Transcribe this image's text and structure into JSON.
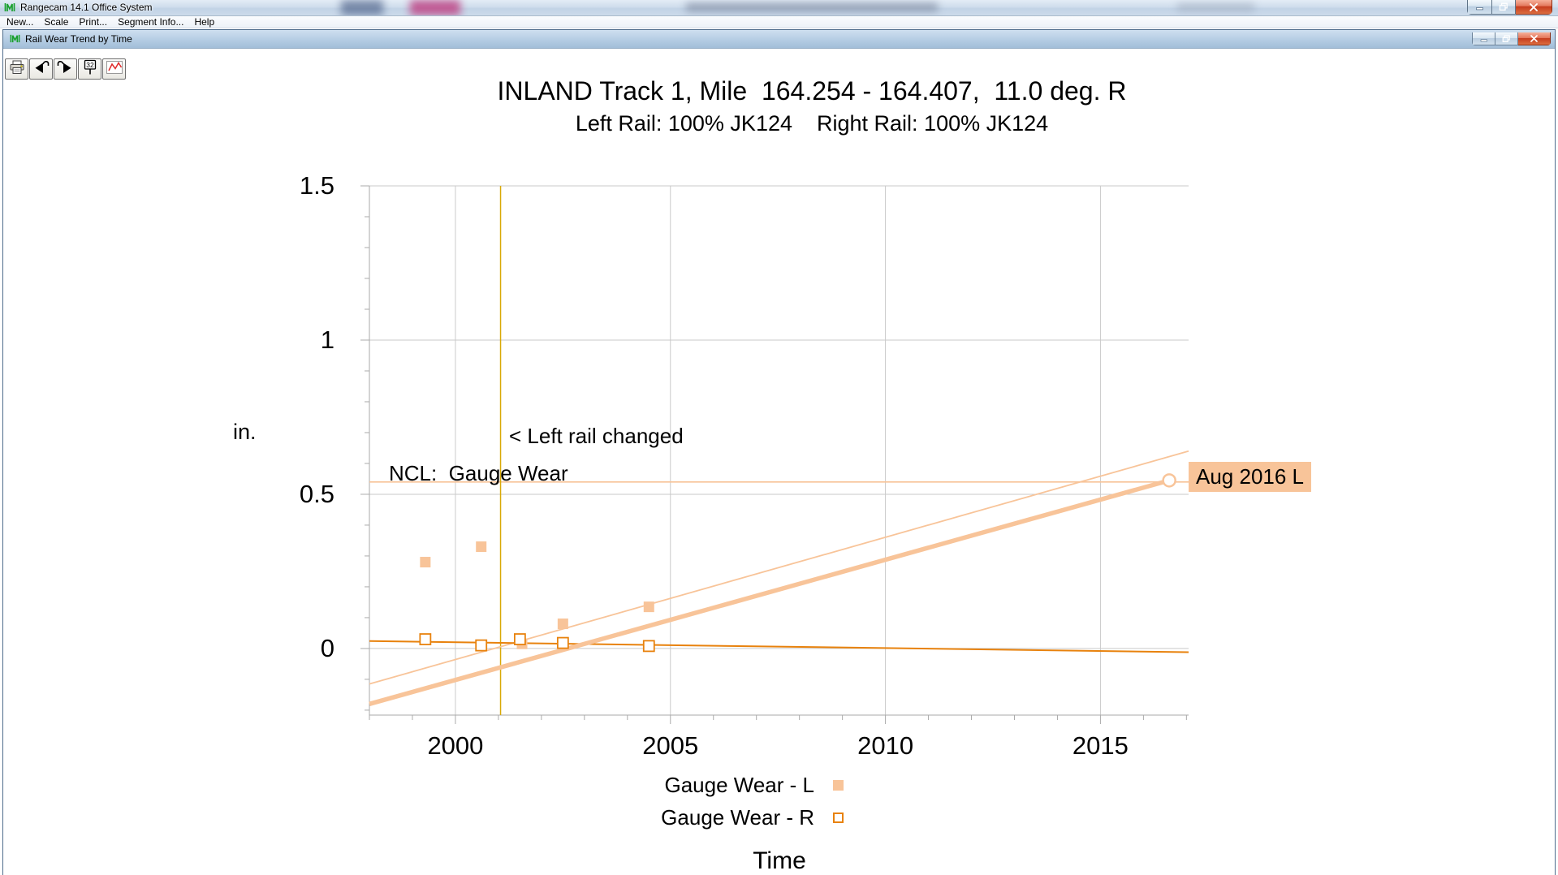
{
  "app_window": {
    "title": "Rangecam 14.1 Office System",
    "menu_items": [
      "New...",
      "Scale",
      "Print...",
      "Segment Info...",
      "Help"
    ]
  },
  "chart_window": {
    "title": "Rail Wear Trend by Time",
    "toolbar_buttons": [
      {
        "icon": "printer-icon"
      },
      {
        "icon": "previous-segment-icon"
      },
      {
        "icon": "next-segment-icon"
      },
      {
        "icon": "milepost-sign-icon",
        "label": "32"
      },
      {
        "icon": "trend-chart-icon"
      }
    ]
  },
  "chart_data": {
    "type": "scatter",
    "title": "INLAND Track 1, Mile  164.254 - 164.407,  11.0 deg. R",
    "subtitle_left": "Left Rail: 100% JK124",
    "subtitle_right": "Right Rail: 100% JK124",
    "xlabel": "Time",
    "ylabel": "in.",
    "xlim": [
      1998,
      2017.05
    ],
    "ylim": [
      -0.216,
      1.5
    ],
    "x_ticks": [
      2000,
      2005,
      2010,
      2015
    ],
    "y_ticks": [
      0,
      0.5,
      1,
      1.5
    ],
    "grid": true,
    "colors": {
      "left_rail": "#F8C499",
      "right_rail": "#E8820D",
      "rail_change_line": "#D9A906",
      "gridline": "#CACACA"
    },
    "series": [
      {
        "name": "Gauge Wear - L",
        "marker": "filled-square",
        "color": "#F8C499",
        "points": [
          [
            1999.3,
            0.28
          ],
          [
            2000.6,
            0.33
          ],
          [
            2001.55,
            0.015
          ],
          [
            2002.5,
            0.08
          ],
          [
            2004.5,
            0.135
          ]
        ]
      },
      {
        "name": "Gauge Wear - R",
        "marker": "open-square",
        "color": "#E8820D",
        "points": [
          [
            1999.3,
            0.03
          ],
          [
            2000.6,
            0.01
          ],
          [
            2001.5,
            0.03
          ],
          [
            2002.5,
            0.018
          ],
          [
            2004.5,
            0.008
          ]
        ]
      }
    ],
    "trend_lines": [
      {
        "name": "left-rail-trend-thin",
        "color": "#F8C499",
        "width": 1.8,
        "points": [
          [
            1998,
            -0.115
          ],
          [
            2017.05,
            0.64
          ]
        ]
      },
      {
        "name": "right-rail-trend",
        "color": "#E8820D",
        "width": 2,
        "points": [
          [
            1998,
            0.024
          ],
          [
            2017.05,
            -0.012
          ]
        ]
      },
      {
        "name": "left-rail-trend-thick",
        "color": "#F8C499",
        "width": 5.5,
        "points": [
          [
            1998,
            -0.18
          ],
          [
            2016.6,
            0.545
          ]
        ],
        "end_marker": "open-circle"
      }
    ],
    "reference_lines": [
      {
        "name": "ncl-limit",
        "orientation": "horizontal",
        "value": 0.54,
        "color": "#F8C499",
        "label": "NCL:  Gauge Wear"
      },
      {
        "name": "left-rail-changed",
        "orientation": "vertical",
        "value": 2001.05,
        "color": "#D9A906",
        "label": "< Left rail changed"
      }
    ],
    "annotations": [
      {
        "text": "Aug 2016 L",
        "x": 2016.6,
        "y": 0.545,
        "background": "#F8C499"
      }
    ],
    "legend": {
      "position": "bottom"
    }
  }
}
